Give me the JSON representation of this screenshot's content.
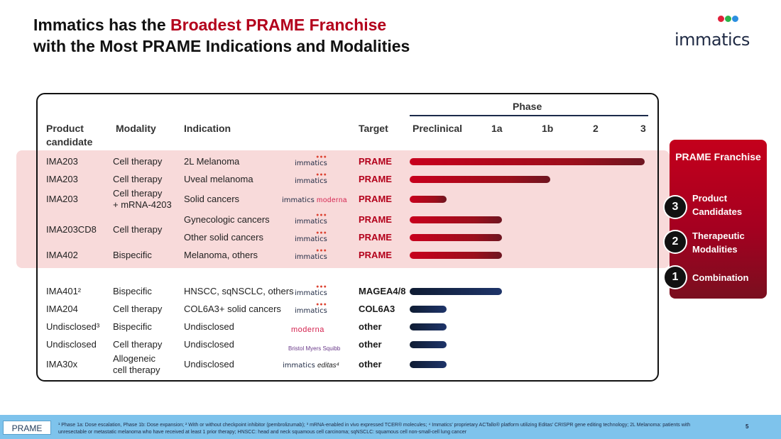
{
  "title": {
    "line1_prefix": "Immatics has the ",
    "line1_highlight": "Broadest PRAME Franchise",
    "line2": "with the Most PRAME Indications and Modalities"
  },
  "logo": {
    "word": "immatics",
    "dot_colors": [
      "#e0213b",
      "#2bb34a",
      "#2b8fe0"
    ]
  },
  "headers": {
    "product": "Product candidate",
    "modality": "Modality",
    "indication": "Indication",
    "target": "Target",
    "phase": "Phase",
    "phases": [
      "Preclinical",
      "1a",
      "1b",
      "2",
      "3"
    ]
  },
  "rows": [
    {
      "product": "IMA203",
      "modality": "Cell therapy",
      "indication": "2L Melanoma",
      "partner": "immatics",
      "target": "PRAME",
      "target_type": "prame",
      "phase_end": 3.0
    },
    {
      "product": "IMA203",
      "modality": "Cell therapy",
      "indication": "Uveal melanoma",
      "partner": "immatics",
      "target": "PRAME",
      "target_type": "prame",
      "phase_end": 1.55
    },
    {
      "product": "IMA203",
      "modality": "Cell therapy\n+ mRNA-4203",
      "indication": "Solid cancers",
      "partner": "immatics-moderna",
      "target": "PRAME",
      "target_type": "prame",
      "phase_end": 0.42
    },
    {
      "product": "IMA203CD8",
      "modality": "Cell therapy",
      "indication": "Gynecologic cancers",
      "partner": "immatics",
      "target": "PRAME",
      "target_type": "prame",
      "phase_end": 1.0
    },
    {
      "product": "",
      "modality": "",
      "indication": "Other solid cancers",
      "partner": "immatics",
      "target": "PRAME",
      "target_type": "prame",
      "phase_end": 1.0
    },
    {
      "product": "IMA402",
      "modality": "Bispecific",
      "indication": "Melanoma, others",
      "partner": "immatics",
      "target": "PRAME",
      "target_type": "prame",
      "phase_end": 1.0
    },
    {
      "product": "IMA401²",
      "modality": "Bispecific",
      "indication": "HNSCC, sqNSCLC, others",
      "partner": "immatics",
      "target": "MAGEA4/8",
      "target_type": "other",
      "phase_end": 1.0
    },
    {
      "product": "IMA204",
      "modality": "Cell therapy",
      "indication": "COL6A3+ solid cancers",
      "partner": "immatics",
      "target": "COL6A3",
      "target_type": "other",
      "phase_end": 0.42
    },
    {
      "product": "Undisclosed³",
      "modality": "Bispecific",
      "indication": "Undisclosed",
      "partner": "moderna",
      "target": "other",
      "target_type": "other",
      "phase_end": 0.42
    },
    {
      "product": "Undisclosed",
      "modality": "Cell therapy",
      "indication": "Undisclosed",
      "partner": "bms",
      "target": "other",
      "target_type": "other",
      "phase_end": 0.42
    },
    {
      "product": "IMA30x",
      "modality": "Allogeneic\ncell therapy",
      "indication": "Undisclosed",
      "partner": "immatics-editas",
      "target": "other",
      "target_type": "other",
      "phase_end": 0.42
    }
  ],
  "partners": {
    "immatics": "immatics",
    "moderna": "moderna",
    "bms": "Bristol Myers Squibb",
    "editas": "editas⁴"
  },
  "franchise": {
    "title": "PRAME Franchise",
    "items": [
      {
        "num": "3",
        "label": "Product Candidates"
      },
      {
        "num": "2",
        "label": "Therapeutic Modalities"
      },
      {
        "num": "1",
        "label": "Combination"
      }
    ]
  },
  "footer": {
    "tag": "PRAME",
    "note": "¹ Phase 1a: Dose escalation, Phase 1b: Dose expansion; ² With or without checkpoint inhibitor (pembrolizumab); ³ mRNA-enabled in vivo expressed TCER® molecules; ⁴ Immatics’ proprietary ACTallo® platform utilizing Editas’ CRISPR gene editing technology; 2L Melanoma: patients with unresectable or metastatic melanoma who have received at least 1 prior therapy; HNSCC: head and neck squamous cell carcinoma; sqNSCLC: squamous cell non-small-cell lung cancer",
    "page": "5"
  }
}
